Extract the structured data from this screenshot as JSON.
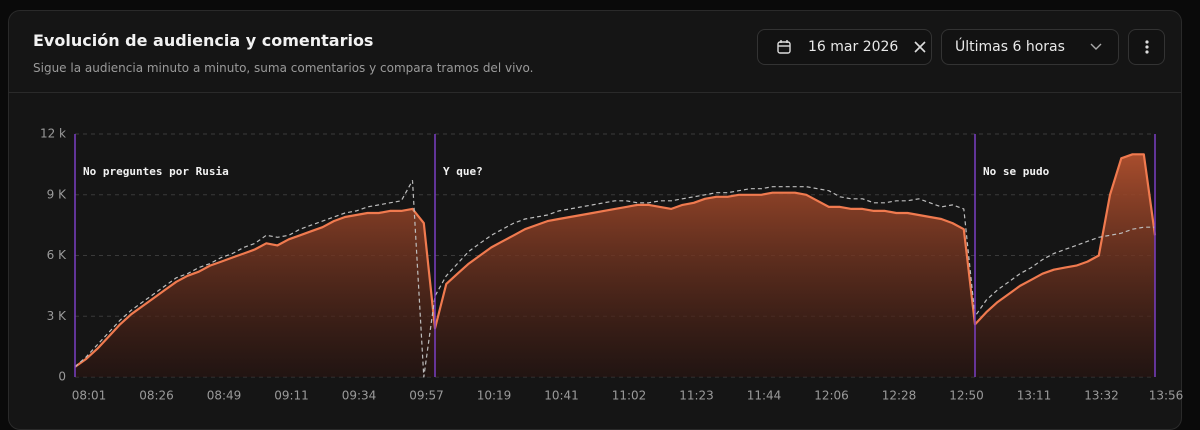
{
  "header": {
    "title": "Evolución de audiencia y comentarios",
    "subtitle": "Sigue la audiencia minuto a minuto, suma comentarios y compara tramos del vivo.",
    "date": "16 mar 2026",
    "range": "Últimas 6 horas"
  },
  "chart_data": {
    "type": "line",
    "categories": [
      "08:01",
      null,
      null,
      null,
      null,
      null,
      "08:26",
      null,
      null,
      null,
      null,
      null,
      "08:49",
      null,
      null,
      null,
      null,
      null,
      "09:11",
      null,
      null,
      null,
      null,
      null,
      "09:34",
      null,
      null,
      null,
      null,
      null,
      "09:57",
      null,
      null,
      null,
      null,
      null,
      "10:19",
      null,
      null,
      null,
      null,
      null,
      "10:41",
      null,
      null,
      null,
      null,
      null,
      "11:02",
      null,
      null,
      null,
      null,
      null,
      "11:23",
      null,
      null,
      null,
      null,
      null,
      "11:44",
      null,
      null,
      null,
      null,
      null,
      "12:06",
      null,
      null,
      null,
      null,
      null,
      "12:28",
      null,
      null,
      null,
      null,
      null,
      "12:50",
      null,
      null,
      null,
      null,
      null,
      "13:11",
      null,
      null,
      null,
      null,
      null,
      "13:32",
      null,
      null,
      null,
      null,
      null,
      "13:56"
    ],
    "series": [
      {
        "color": "#f07a4f",
        "style": "area",
        "values": [
          500,
          900,
          1400,
          2000,
          2600,
          3100,
          3500,
          3900,
          4300,
          4700,
          5000,
          5200,
          5500,
          5700,
          5900,
          6100,
          6300,
          6600,
          6500,
          6800,
          7000,
          7200,
          7400,
          7700,
          7900,
          8000,
          8100,
          8100,
          8200,
          8200,
          8300,
          7600,
          2400,
          4600,
          5100,
          5600,
          6000,
          6400,
          6700,
          7000,
          7300,
          7500,
          7700,
          7800,
          7900,
          8000,
          8100,
          8200,
          8300,
          8400,
          8500,
          8500,
          8400,
          8300,
          8500,
          8600,
          8800,
          8900,
          8900,
          9000,
          9000,
          9000,
          9100,
          9100,
          9100,
          9000,
          8700,
          8400,
          8400,
          8300,
          8300,
          8200,
          8200,
          8100,
          8100,
          8000,
          7900,
          7800,
          7600,
          7300,
          2600,
          3200,
          3700,
          4100,
          4500,
          4800,
          5100,
          5300,
          5400,
          5500,
          5700,
          6000,
          9000,
          10800,
          11000,
          11000,
          7000
        ]
      },
      {
        "color": "#bdbdbd",
        "style": "dashed",
        "values": [
          500,
          1000,
          1600,
          2200,
          2800,
          3300,
          3700,
          4100,
          4500,
          4900,
          5100,
          5400,
          5600,
          5900,
          6100,
          6400,
          6600,
          7000,
          6900,
          7000,
          7300,
          7500,
          7700,
          7900,
          8100,
          8200,
          8400,
          8500,
          8600,
          8700,
          9700,
          0,
          4000,
          5000,
          5600,
          6200,
          6600,
          7000,
          7300,
          7600,
          7800,
          7900,
          8000,
          8200,
          8300,
          8400,
          8500,
          8600,
          8700,
          8700,
          8600,
          8600,
          8700,
          8700,
          8800,
          8900,
          9000,
          9100,
          9100,
          9200,
          9300,
          9300,
          9400,
          9400,
          9400,
          9400,
          9300,
          9200,
          8900,
          8800,
          8800,
          8600,
          8600,
          8700,
          8700,
          8800,
          8600,
          8400,
          8500,
          8300,
          3000,
          3800,
          4300,
          4700,
          5100,
          5400,
          5800,
          6100,
          6300,
          6500,
          6700,
          6900,
          7000,
          7100,
          7300,
          7400,
          7400
        ]
      }
    ],
    "ylim": [
      0,
      12000
    ],
    "yticks": [
      0,
      {
        "value": 3000,
        "label": "3 K"
      },
      {
        "value": 6000,
        "label": "6 K"
      },
      {
        "value": 9000,
        "label": "9 K"
      },
      {
        "value": 12000,
        "label": "12 k"
      }
    ],
    "grid": true,
    "annotations": [
      {
        "x": 0,
        "text": "No preguntes por Rusia"
      },
      {
        "x": 32,
        "text": "Y que?"
      },
      {
        "x": 80,
        "text": "No se pudo"
      }
    ],
    "annotation_color": "#7b3fc4"
  }
}
